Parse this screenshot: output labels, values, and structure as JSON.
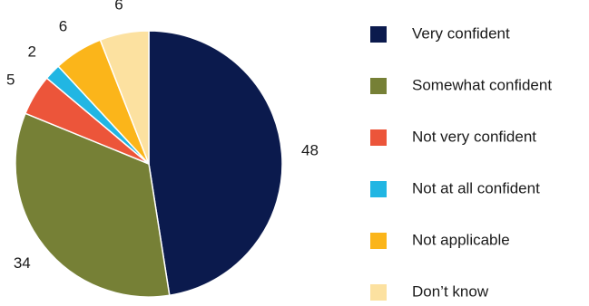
{
  "chart_data": {
    "type": "pie",
    "title": "",
    "categories": [
      "Very confident",
      "Somewhat confident",
      "Not very confident",
      "Not at all confident",
      "Not applicable",
      "Don’t know"
    ],
    "values": [
      48,
      34,
      5,
      2,
      6,
      6
    ],
    "data_labels": [
      "48",
      "34",
      "5",
      "2",
      "6",
      "6"
    ],
    "colors": [
      "#0b1a4d",
      "#768036",
      "#ec553a",
      "#21b6e3",
      "#fbb51a",
      "#fce1a0"
    ],
    "legend_position": "right",
    "start": "top",
    "direction": "clockwise"
  }
}
